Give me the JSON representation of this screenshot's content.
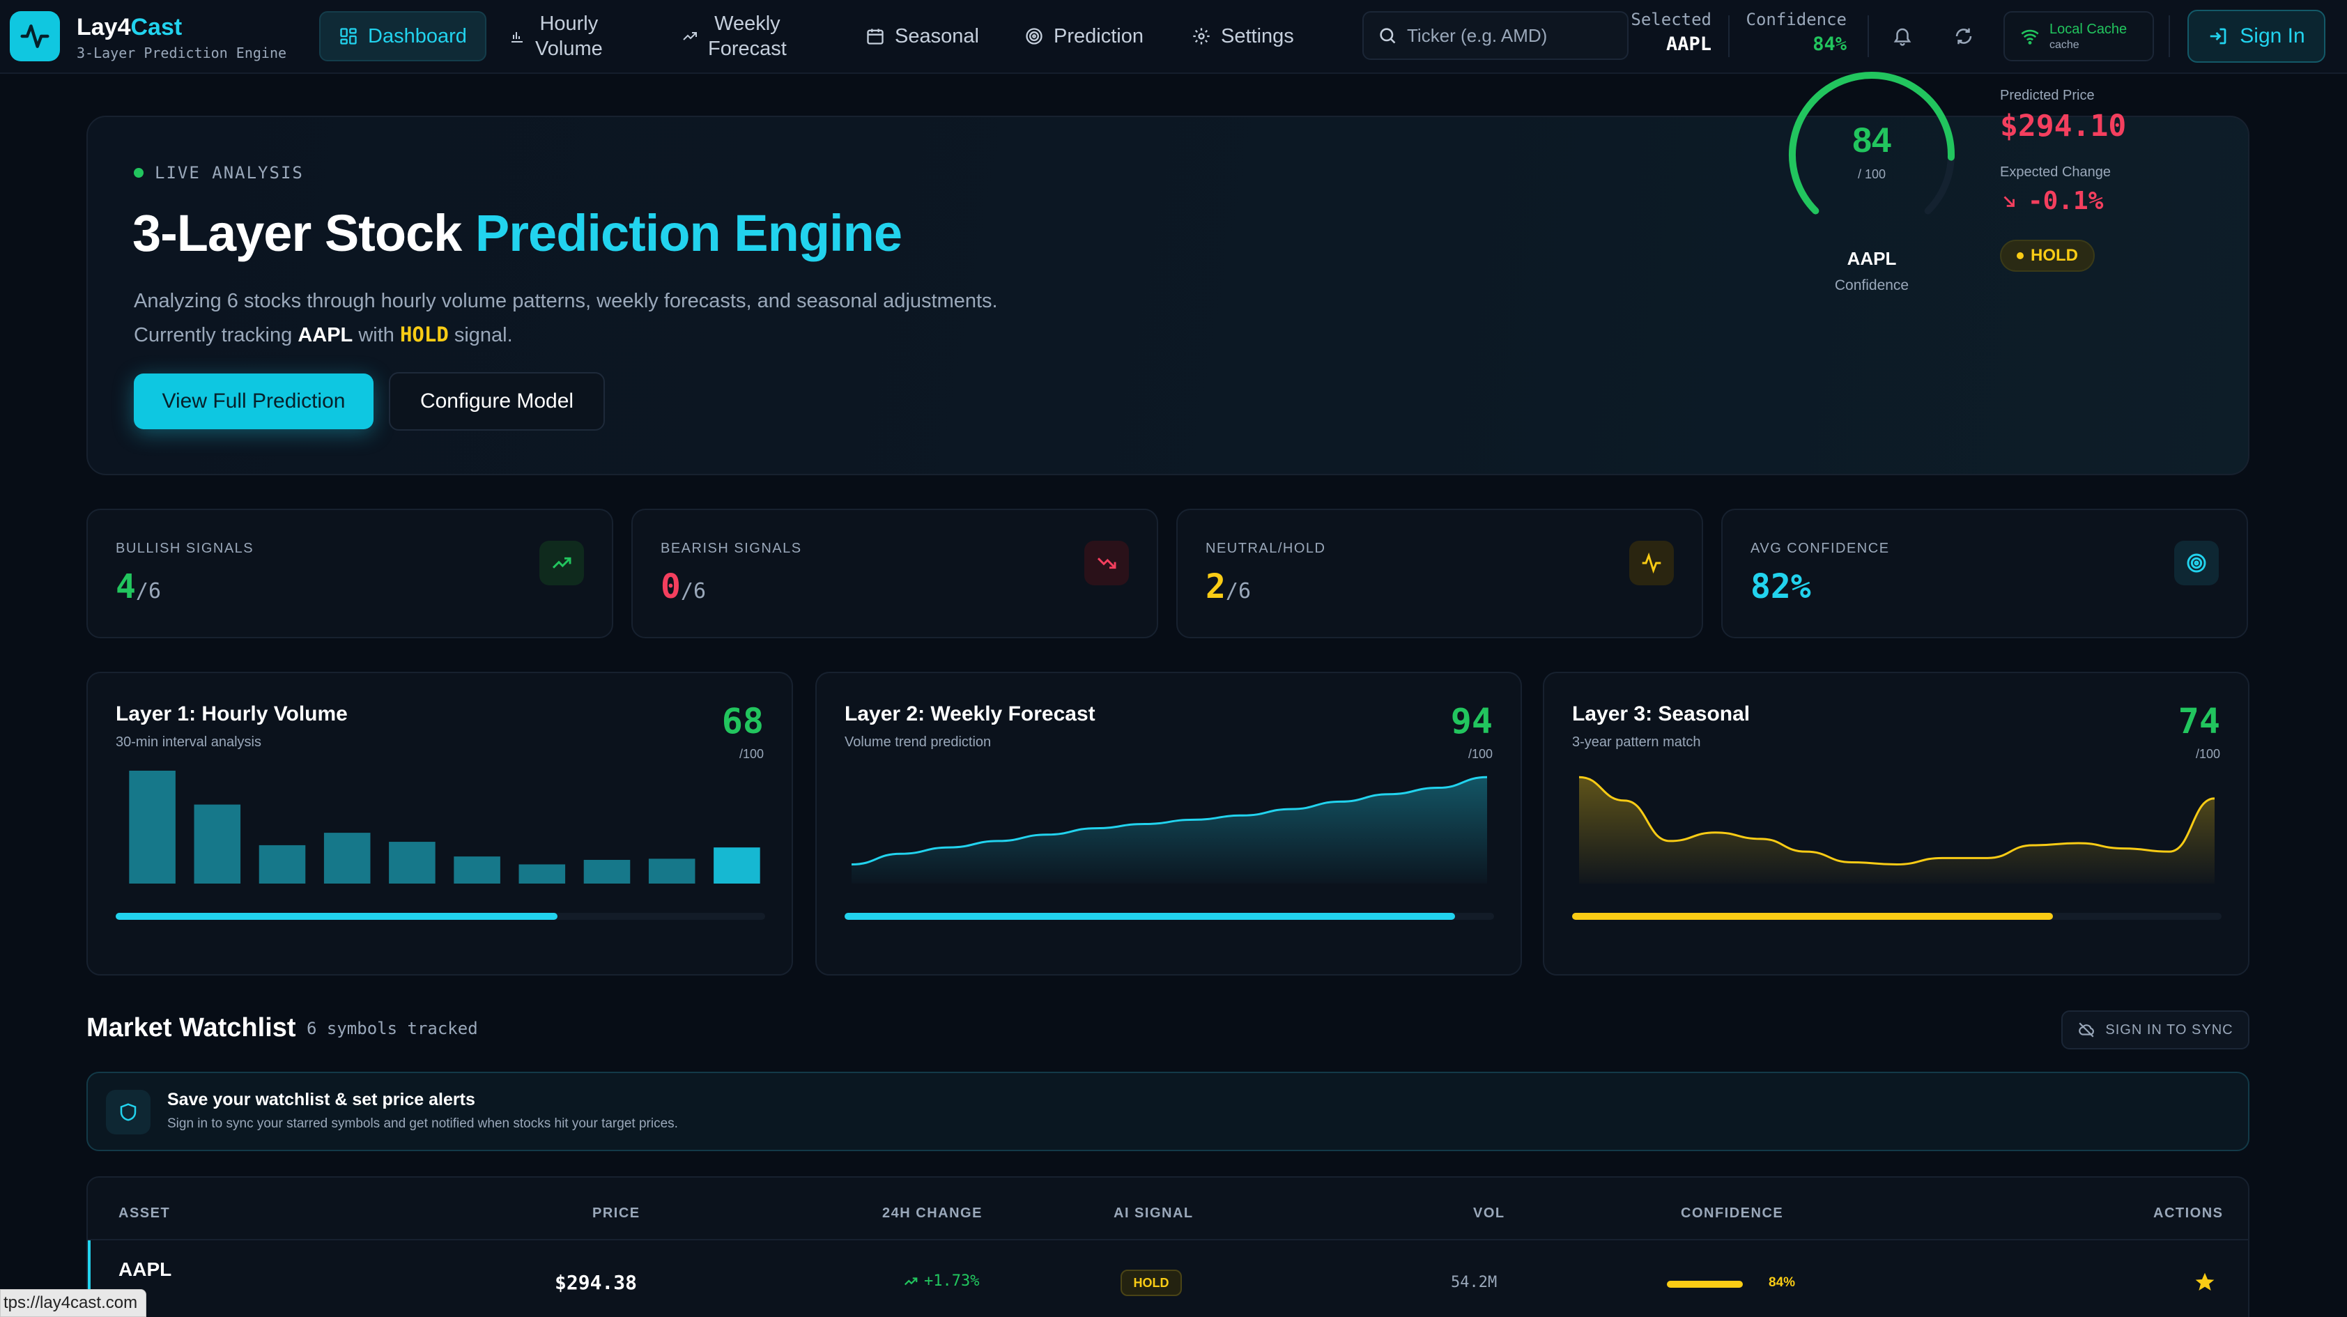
{
  "app": {
    "name_main": "Lay4",
    "name_accent": "Cast",
    "subtitle": "3-Layer Prediction Engine"
  },
  "nav": {
    "items": [
      {
        "label": "Dashboard",
        "icon": "grid-icon",
        "active": true
      },
      {
        "label": "Hourly\nVolume",
        "icon": "bar-chart-icon"
      },
      {
        "label": "Weekly\nForecast",
        "icon": "trending-up-icon"
      },
      {
        "label": "Seasonal",
        "icon": "calendar-icon"
      },
      {
        "label": "Prediction",
        "icon": "target-icon"
      },
      {
        "label": "Settings",
        "icon": "gear-icon"
      }
    ],
    "search_placeholder": "Ticker (e.g. AMD)",
    "selected_label": "Selected",
    "selected_value": "AAPL",
    "confidence_label": "Confidence",
    "confidence_value": "84%",
    "cache_title": "Local Cache",
    "cache_sub": "cache",
    "signin_label": "Sign In"
  },
  "hero": {
    "live_label": "LIVE ANALYSIS",
    "title_main": "3-Layer Stock ",
    "title_accent": "Prediction Engine",
    "desc_part1": "Analyzing 6 stocks through hourly volume patterns, weekly forecasts, and seasonal adjustments. Currently tracking ",
    "desc_symbol": "AAPL",
    "desc_part2": " with ",
    "desc_signal": "HOLD",
    "desc_part3": " signal.",
    "primary_button": "View Full Prediction",
    "secondary_button": "Configure Model",
    "gauge_value": "84",
    "gauge_max": "/ 100",
    "gauge_fraction": 0.84,
    "gauge_symbol": "AAPL",
    "gauge_caption": "Confidence",
    "predicted_label": "Predicted Price",
    "predicted_value": "$294.10",
    "change_label": "Expected Change",
    "change_value": "-0.1%",
    "signal_badge": "HOLD"
  },
  "stats": [
    {
      "label": "BULLISH SIGNALS",
      "value": "4",
      "denominator": "/6",
      "color": "#22c55e",
      "icon": "trending-up-icon"
    },
    {
      "label": "BEARISH SIGNALS",
      "value": "0",
      "denominator": "/6",
      "color": "#f43f5e",
      "icon": "trending-down-icon"
    },
    {
      "label": "NEUTRAL/HOLD",
      "value": "2",
      "denominator": "/6",
      "color": "#facc15",
      "icon": "activity-icon"
    },
    {
      "label": "AVG CONFIDENCE",
      "value": "82%",
      "denominator": "",
      "color": "#22d3ee",
      "icon": "target-icon"
    }
  ],
  "layers": [
    {
      "title": "Layer 1: Hourly Volume",
      "subtitle": "30-min interval analysis",
      "score": "68",
      "denominator": "/100",
      "progress": 0.68,
      "color": "#22c55e",
      "bar_color": "#22d3ee",
      "chart_data": {
        "type": "bar",
        "values": [
          100,
          70,
          34,
          45,
          37,
          24,
          17,
          21,
          22,
          32
        ],
        "ylim": [
          0,
          100
        ]
      }
    },
    {
      "title": "Layer 2: Weekly Forecast",
      "subtitle": "Volume trend prediction",
      "score": "94",
      "denominator": "/100",
      "progress": 0.94,
      "color": "#22c55e",
      "bar_color": "#22d3ee",
      "chart_data": {
        "type": "area",
        "values": [
          18,
          28,
          34,
          40,
          46,
          52,
          56,
          60,
          64,
          70,
          77,
          84,
          90,
          100
        ],
        "ylim": [
          0,
          110
        ]
      }
    },
    {
      "title": "Layer 3: Seasonal",
      "subtitle": "3-year pattern match",
      "score": "74",
      "denominator": "/100",
      "progress": 0.74,
      "color": "#22c55e",
      "bar_color": "#facc15",
      "chart_data": {
        "type": "area",
        "values": [
          100,
          78,
          40,
          48,
          42,
          30,
          20,
          18,
          24,
          24,
          36,
          38,
          33,
          30,
          80
        ],
        "ylim": [
          0,
          110
        ]
      }
    }
  ],
  "watchlist": {
    "title": "Market Watchlist",
    "count": "6 symbols tracked",
    "sync_label": "SIGN IN TO SYNC",
    "banner_title": "Save your watchlist & set price alerts",
    "banner_desc": "Sign in to sync your starred symbols and get notified when stocks hit your target prices.",
    "columns": [
      "ASSET",
      "PRICE",
      "24H CHANGE",
      "AI SIGNAL",
      "VOL",
      "CONFIDENCE",
      "ACTIONS"
    ],
    "rows": [
      {
        "asset": "AAPL",
        "price": "$294.38",
        "change": "+1.73%",
        "signal": "HOLD",
        "vol": "54.2M",
        "confidence": "84%",
        "confidence_fraction": 0.84
      }
    ]
  },
  "status_url": "tps://lay4cast.com"
}
